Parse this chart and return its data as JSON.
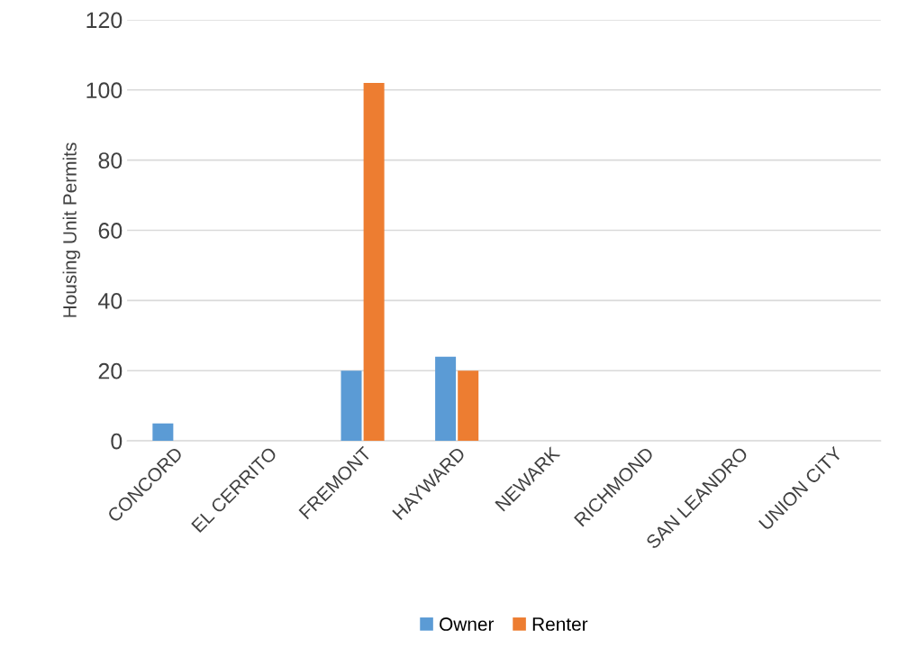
{
  "chart_data": {
    "type": "bar",
    "ylabel": "Housing Unit Permits",
    "categories": [
      "CONCORD",
      "EL CERRITO",
      "FREMONT",
      "HAYWARD",
      "NEWARK",
      "RICHMOND",
      "SAN LEANDRO",
      "UNION CITY"
    ],
    "series": [
      {
        "name": "Owner",
        "color": "#5b9bd5",
        "values": [
          5,
          0,
          20,
          24,
          0,
          0,
          0,
          0
        ]
      },
      {
        "name": "Renter",
        "color": "#ed7d31",
        "values": [
          0,
          0,
          102,
          20,
          0,
          0,
          0,
          0
        ]
      }
    ],
    "ylim": [
      0,
      120
    ],
    "yticks": [
      0,
      20,
      40,
      60,
      80,
      100,
      120
    ],
    "grid": "y",
    "legend": "bottom"
  }
}
